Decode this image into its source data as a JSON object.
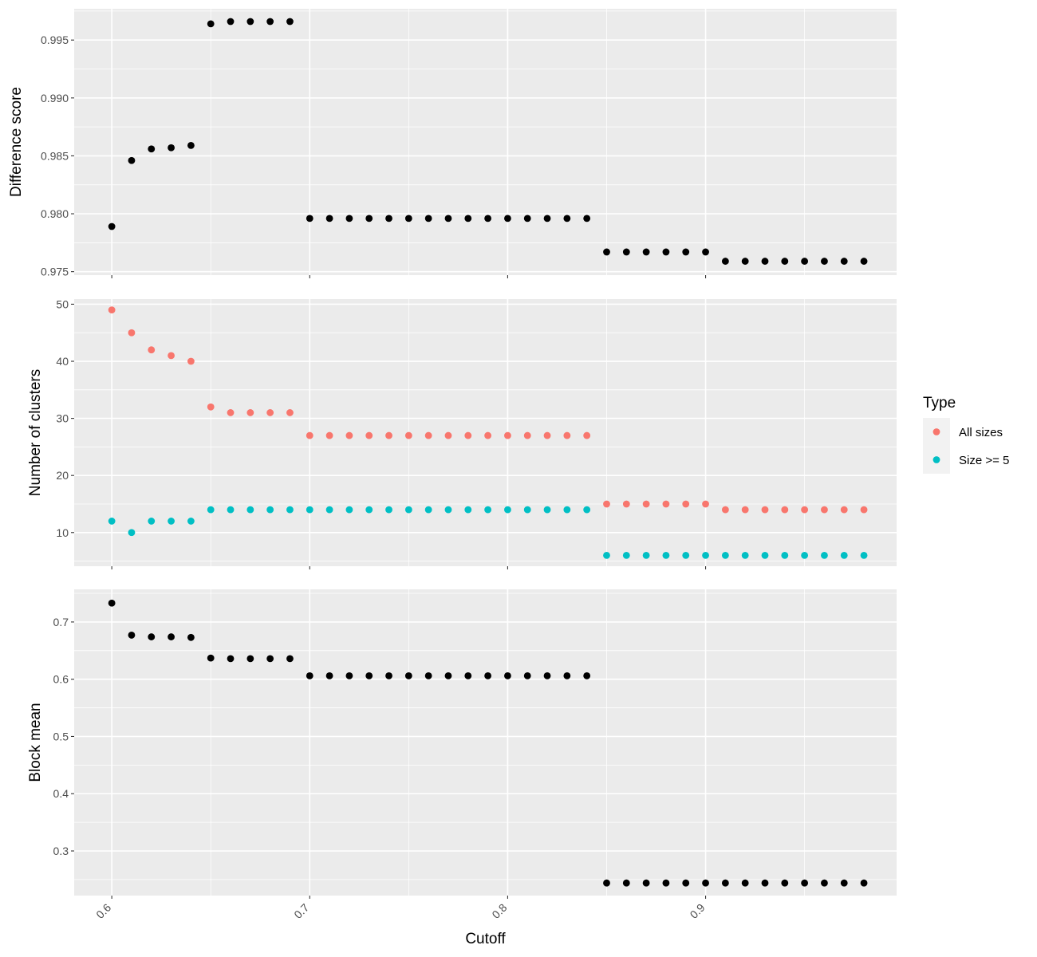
{
  "chart_data": [
    {
      "type": "scatter",
      "ylabel": "Difference score",
      "xlim": [
        0.581,
        0.9965
      ],
      "ylim": [
        0.9747,
        0.9977
      ],
      "y_ticks": [
        0.975,
        0.98,
        0.985,
        0.99,
        0.995
      ],
      "y_tick_labels": [
        "0.975",
        "0.980",
        "0.985",
        "0.990",
        "0.995"
      ],
      "x_ticks": [
        0.6,
        0.7,
        0.8,
        0.9
      ],
      "grid": true,
      "series": [
        {
          "color": "#000000",
          "x": [
            0.6,
            0.61,
            0.62,
            0.63,
            0.64,
            0.65,
            0.66,
            0.67,
            0.68,
            0.69,
            0.7,
            0.71,
            0.72,
            0.73,
            0.74,
            0.75,
            0.76,
            0.77,
            0.78,
            0.79,
            0.8,
            0.81,
            0.82,
            0.83,
            0.84,
            0.85,
            0.86,
            0.87,
            0.88,
            0.89,
            0.9,
            0.91,
            0.92,
            0.93,
            0.94,
            0.95,
            0.96,
            0.97,
            0.98
          ],
          "y": [
            0.9789,
            0.9846,
            0.9856,
            0.9857,
            0.9859,
            0.9964,
            0.9966,
            0.9966,
            0.9966,
            0.9966,
            0.9796,
            0.9796,
            0.9796,
            0.9796,
            0.9796,
            0.9796,
            0.9796,
            0.9796,
            0.9796,
            0.9796,
            0.9796,
            0.9796,
            0.9796,
            0.9796,
            0.9796,
            0.9767,
            0.9767,
            0.9767,
            0.9767,
            0.9767,
            0.9767,
            0.9759,
            0.9759,
            0.9759,
            0.9759,
            0.9759,
            0.9759,
            0.9759,
            0.9759
          ]
        }
      ]
    },
    {
      "type": "scatter",
      "ylabel": "Number of clusters",
      "xlim": [
        0.581,
        0.9965
      ],
      "ylim": [
        4.1,
        50.9
      ],
      "y_ticks": [
        10,
        20,
        30,
        40,
        50
      ],
      "y_tick_labels": [
        "10",
        "20",
        "30",
        "40",
        "50"
      ],
      "x_ticks": [
        0.6,
        0.7,
        0.8,
        0.9
      ],
      "grid": true,
      "legend": {
        "title": "Type",
        "position": "right"
      },
      "series": [
        {
          "name": "All sizes",
          "color": "#f8766d",
          "x": [
            0.6,
            0.61,
            0.62,
            0.63,
            0.64,
            0.65,
            0.66,
            0.67,
            0.68,
            0.69,
            0.7,
            0.71,
            0.72,
            0.73,
            0.74,
            0.75,
            0.76,
            0.77,
            0.78,
            0.79,
            0.8,
            0.81,
            0.82,
            0.83,
            0.84,
            0.85,
            0.86,
            0.87,
            0.88,
            0.89,
            0.9,
            0.91,
            0.92,
            0.93,
            0.94,
            0.95,
            0.96,
            0.97,
            0.98
          ],
          "y": [
            49,
            45,
            42,
            41,
            40,
            32,
            31,
            31,
            31,
            31,
            27,
            27,
            27,
            27,
            27,
            27,
            27,
            27,
            27,
            27,
            27,
            27,
            27,
            27,
            27,
            15,
            15,
            15,
            15,
            15,
            15,
            14,
            14,
            14,
            14,
            14,
            14,
            14,
            14
          ]
        },
        {
          "name": "Size >= 5",
          "color": "#00bfc4",
          "x": [
            0.6,
            0.61,
            0.62,
            0.63,
            0.64,
            0.65,
            0.66,
            0.67,
            0.68,
            0.69,
            0.7,
            0.71,
            0.72,
            0.73,
            0.74,
            0.75,
            0.76,
            0.77,
            0.78,
            0.79,
            0.8,
            0.81,
            0.82,
            0.83,
            0.84,
            0.85,
            0.86,
            0.87,
            0.88,
            0.89,
            0.9,
            0.91,
            0.92,
            0.93,
            0.94,
            0.95,
            0.96,
            0.97,
            0.98
          ],
          "y": [
            12,
            10,
            12,
            12,
            12,
            14,
            14,
            14,
            14,
            14,
            14,
            14,
            14,
            14,
            14,
            14,
            14,
            14,
            14,
            14,
            14,
            14,
            14,
            14,
            14,
            6,
            6,
            6,
            6,
            6,
            6,
            6,
            6,
            6,
            6,
            6,
            6,
            6,
            6
          ]
        }
      ]
    },
    {
      "type": "scatter",
      "ylabel": "Block mean",
      "xlabel": "Cutoff",
      "xlim": [
        0.581,
        0.9965
      ],
      "ylim": [
        0.222,
        0.757
      ],
      "y_ticks": [
        0.3,
        0.4,
        0.5,
        0.6,
        0.7
      ],
      "y_tick_labels": [
        "0.3",
        "0.4",
        "0.5",
        "0.6",
        "0.7"
      ],
      "x_ticks": [
        0.6,
        0.7,
        0.8,
        0.9
      ],
      "x_tick_labels": [
        "0.6",
        "0.7",
        "0.8",
        "0.9"
      ],
      "grid": true,
      "series": [
        {
          "color": "#000000",
          "x": [
            0.6,
            0.61,
            0.62,
            0.63,
            0.64,
            0.65,
            0.66,
            0.67,
            0.68,
            0.69,
            0.7,
            0.71,
            0.72,
            0.73,
            0.74,
            0.75,
            0.76,
            0.77,
            0.78,
            0.79,
            0.8,
            0.81,
            0.82,
            0.83,
            0.84,
            0.85,
            0.86,
            0.87,
            0.88,
            0.89,
            0.9,
            0.91,
            0.92,
            0.93,
            0.94,
            0.95,
            0.96,
            0.97,
            0.98
          ],
          "y": [
            0.733,
            0.677,
            0.674,
            0.674,
            0.673,
            0.637,
            0.636,
            0.636,
            0.636,
            0.636,
            0.606,
            0.606,
            0.606,
            0.606,
            0.606,
            0.606,
            0.606,
            0.606,
            0.606,
            0.606,
            0.606,
            0.606,
            0.606,
            0.606,
            0.606,
            0.244,
            0.244,
            0.244,
            0.244,
            0.244,
            0.244,
            0.244,
            0.244,
            0.244,
            0.244,
            0.244,
            0.244,
            0.244,
            0.244
          ]
        }
      ]
    }
  ]
}
